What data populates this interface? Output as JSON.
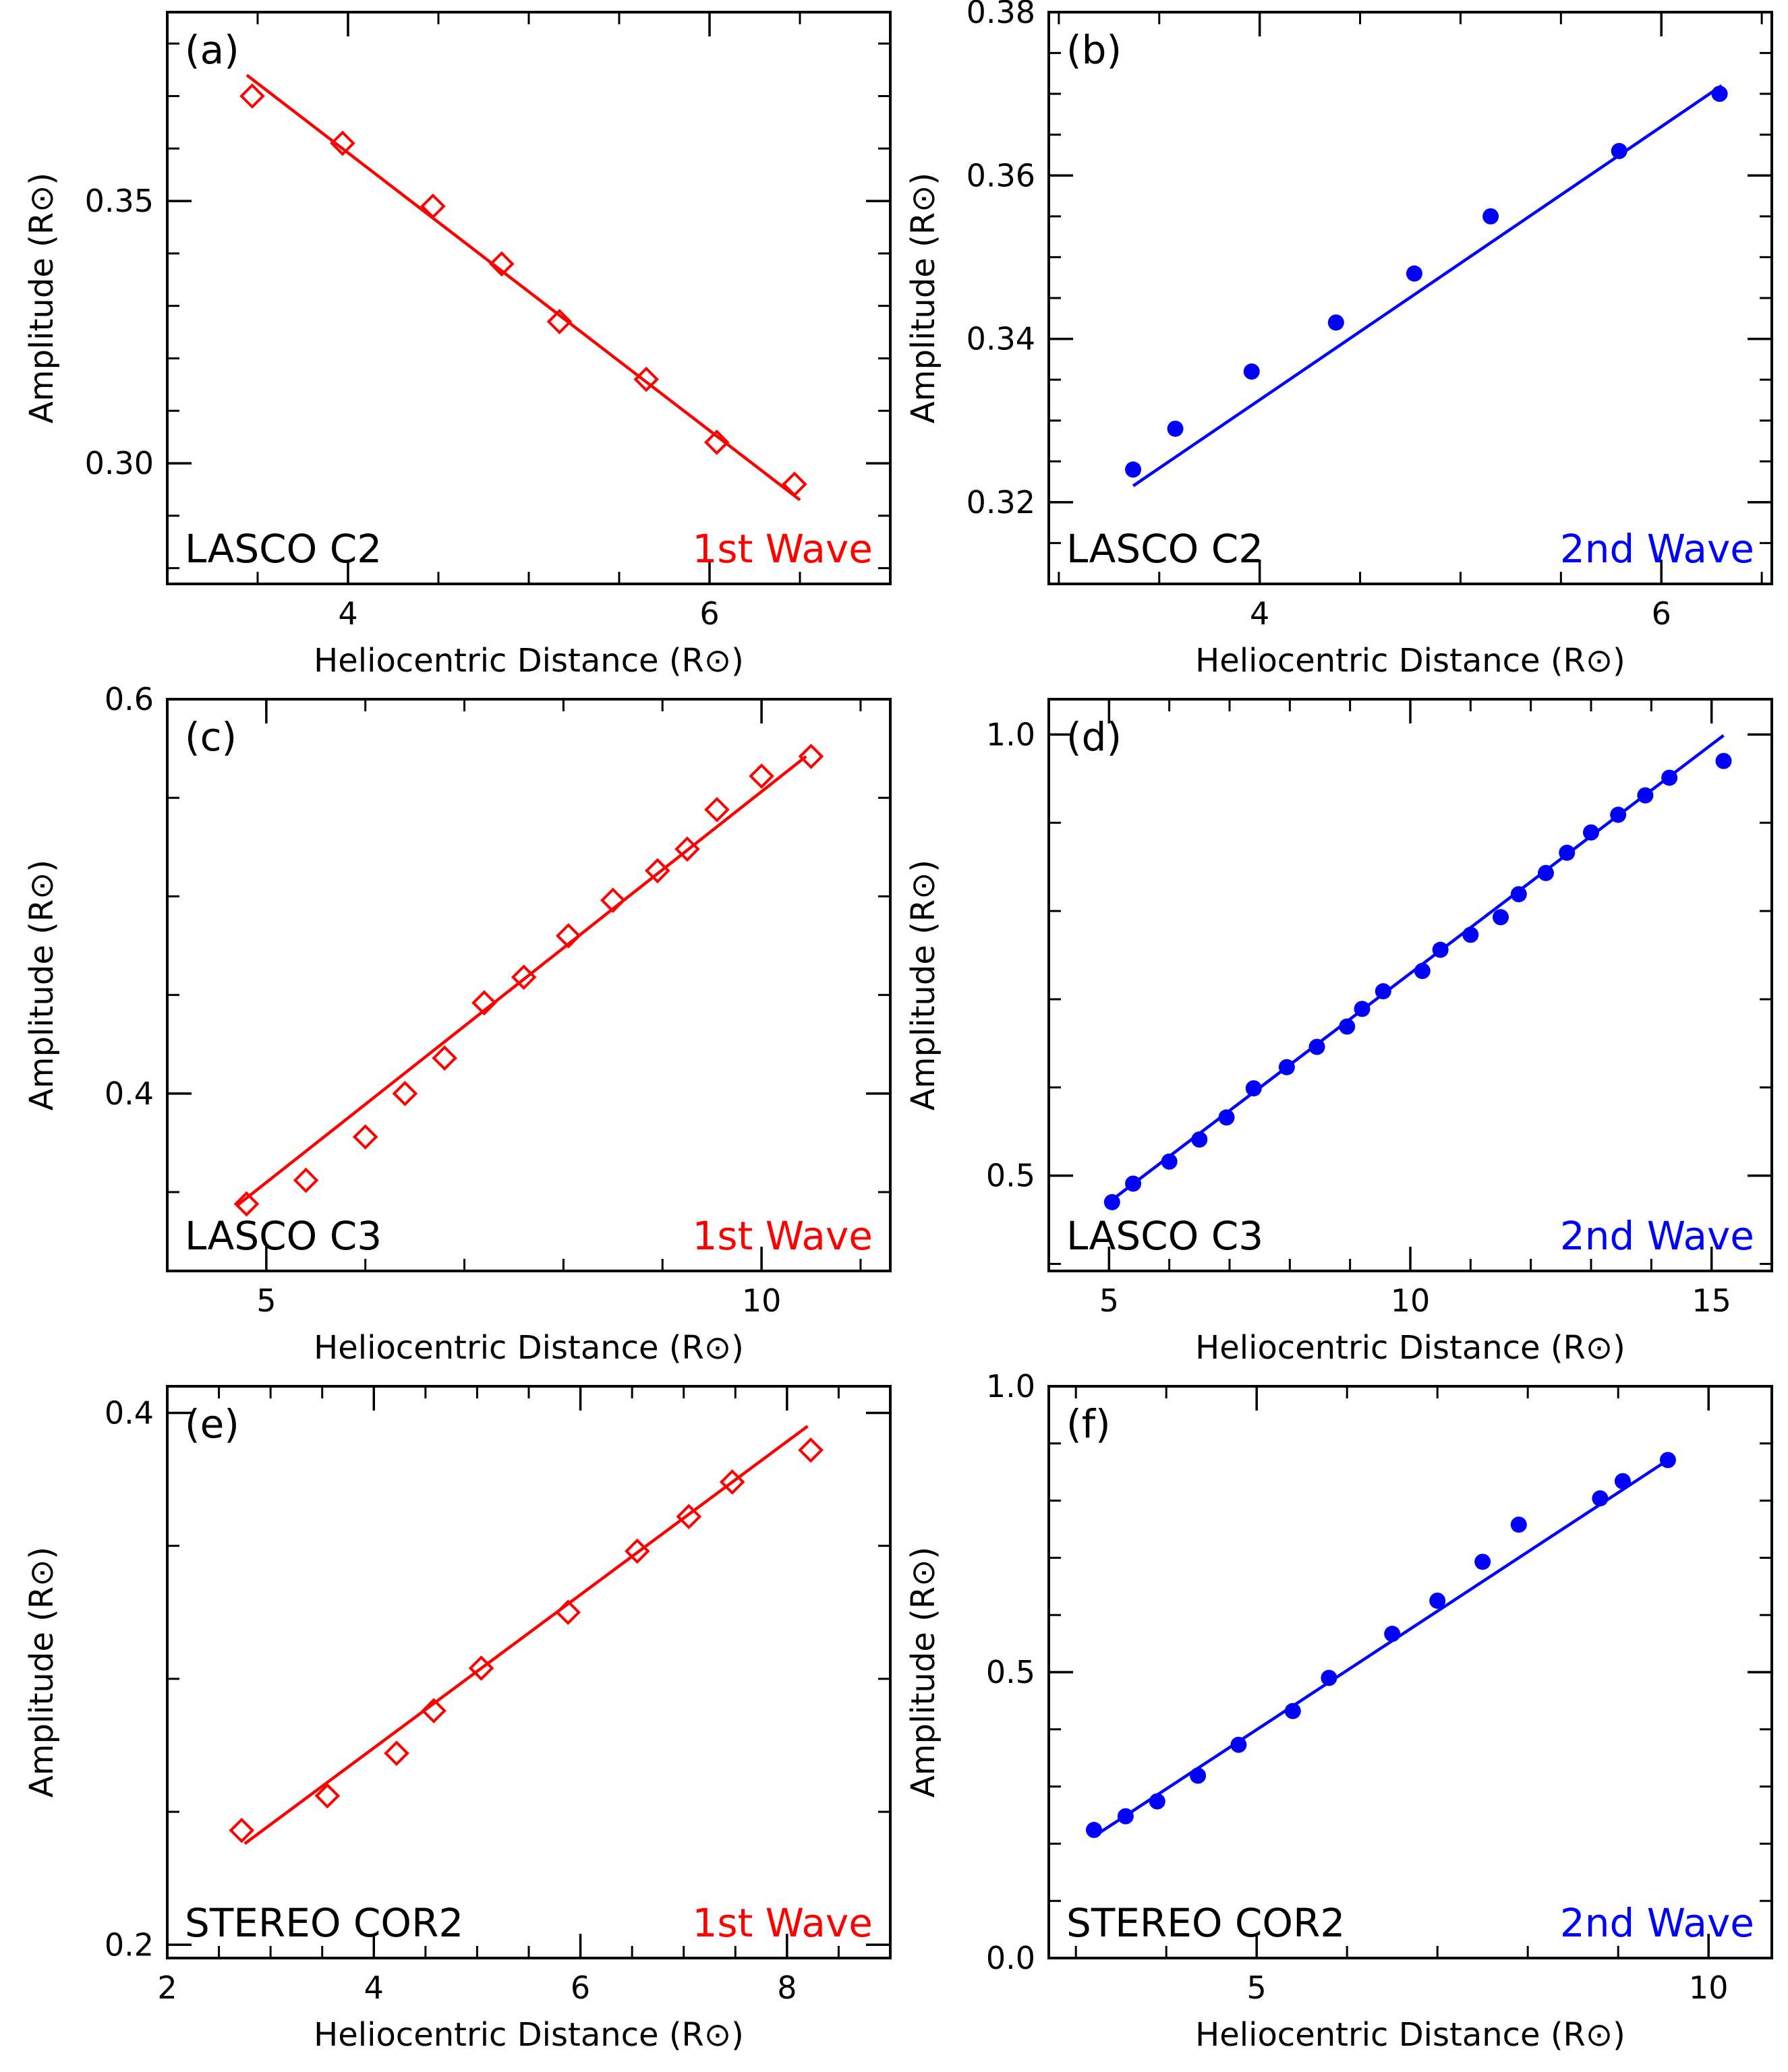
{
  "figure": {
    "colors": {
      "first_wave": "#ff0000",
      "second_wave": "#0000ff",
      "axis": "#000000"
    },
    "panels_info": "six panels in a 3x2 grid"
  },
  "chart_data": [
    {
      "panel": "(a)",
      "type": "scatter",
      "instrument": "LASCO C2",
      "wave": "1st Wave",
      "color": "#ff0000",
      "marker": "diamond-open",
      "xlabel": "Heliocentric Distance (R⊙)",
      "ylabel": "Amplitude (R⊙)",
      "xlim": [
        3.0,
        7.0
      ],
      "ylim": [
        0.277,
        0.386
      ],
      "xticks": [
        4,
        6
      ],
      "xtick_labels": [
        "4",
        "6"
      ],
      "xminor": 0.5,
      "yticks": [
        0.3,
        0.35
      ],
      "ytick_labels": [
        "0.30",
        "0.35"
      ],
      "yminor": 0.01,
      "points": [
        [
          3.47,
          0.37
        ],
        [
          3.97,
          0.361
        ],
        [
          4.47,
          0.349
        ],
        [
          4.85,
          0.338
        ],
        [
          5.17,
          0.327
        ],
        [
          5.65,
          0.316
        ],
        [
          6.04,
          0.304
        ],
        [
          6.47,
          0.296
        ]
      ],
      "fit": [
        [
          3.44,
          0.374
        ],
        [
          6.5,
          0.293
        ]
      ]
    },
    {
      "panel": "(b)",
      "type": "scatter",
      "instrument": "LASCO C2",
      "wave": "2nd Wave",
      "color": "#0000ff",
      "marker": "circle-filled",
      "xlabel": "Heliocentric Distance (R⊙)",
      "ylabel": "Amplitude (R⊙)",
      "xlim": [
        2.95,
        6.55
      ],
      "ylim": [
        0.31,
        0.38
      ],
      "xticks": [
        4,
        6
      ],
      "xtick_labels": [
        "4",
        "6"
      ],
      "xminor": 0.5,
      "yticks": [
        0.32,
        0.34,
        0.36,
        0.38
      ],
      "ytick_labels": [
        "0.32",
        "0.34",
        "0.36",
        "0.38"
      ],
      "yminor": 0.005,
      "points": [
        [
          3.37,
          0.324
        ],
        [
          3.58,
          0.329
        ],
        [
          3.96,
          0.336
        ],
        [
          4.38,
          0.342
        ],
        [
          4.77,
          0.348
        ],
        [
          5.15,
          0.355
        ],
        [
          5.79,
          0.363
        ],
        [
          6.29,
          0.37
        ]
      ],
      "fit": [
        [
          3.37,
          0.322
        ],
        [
          6.3,
          0.371
        ]
      ]
    },
    {
      "panel": "(c)",
      "type": "scatter",
      "instrument": "LASCO C3",
      "wave": "1st Wave",
      "color": "#ff0000",
      "marker": "diamond-open",
      "xlabel": "Heliocentric Distance (R⊙)",
      "ylabel": "Amplitude (R⊙)",
      "xlim": [
        4.0,
        11.3
      ],
      "ylim": [
        0.31,
        0.6
      ],
      "xticks": [
        5,
        10
      ],
      "xtick_labels": [
        "5",
        "10"
      ],
      "xminor": 1,
      "yticks": [
        0.4,
        0.6
      ],
      "ytick_labels": [
        "0.4",
        "0.6"
      ],
      "yminor": 0.05,
      "points": [
        [
          4.8,
          0.344
        ],
        [
          5.4,
          0.356
        ],
        [
          6.0,
          0.378
        ],
        [
          6.4,
          0.4
        ],
        [
          6.8,
          0.418
        ],
        [
          7.2,
          0.446
        ],
        [
          7.6,
          0.459
        ],
        [
          8.05,
          0.48
        ],
        [
          8.5,
          0.498
        ],
        [
          8.95,
          0.513
        ],
        [
          9.25,
          0.524
        ],
        [
          9.55,
          0.544
        ],
        [
          10.0,
          0.561
        ],
        [
          10.5,
          0.571
        ]
      ],
      "fit": [
        [
          4.7,
          0.343
        ],
        [
          10.45,
          0.571
        ]
      ]
    },
    {
      "panel": "(d)",
      "type": "scatter",
      "instrument": "LASCO C3",
      "wave": "2nd Wave",
      "color": "#0000ff",
      "marker": "circle-filled",
      "xlabel": "Heliocentric Distance (R⊙)",
      "ylabel": "Amplitude (R⊙)",
      "xlim": [
        4.0,
        16.0
      ],
      "ylim": [
        0.392,
        1.04
      ],
      "xticks": [
        5,
        10,
        15
      ],
      "xtick_labels": [
        "5",
        "10",
        "15"
      ],
      "xminor": 1,
      "yticks": [
        0.5,
        1.0
      ],
      "ytick_labels": [
        "0.5",
        "1.0"
      ],
      "yminor": 0.1,
      "points": [
        [
          5.05,
          0.47
        ],
        [
          5.4,
          0.491
        ],
        [
          6.0,
          0.516
        ],
        [
          6.5,
          0.541
        ],
        [
          6.95,
          0.566
        ],
        [
          7.4,
          0.599
        ],
        [
          7.95,
          0.623
        ],
        [
          8.45,
          0.646
        ],
        [
          8.95,
          0.669
        ],
        [
          9.2,
          0.689
        ],
        [
          9.55,
          0.709
        ],
        [
          10.2,
          0.732
        ],
        [
          10.5,
          0.756
        ],
        [
          11.0,
          0.773
        ],
        [
          11.5,
          0.793
        ],
        [
          11.8,
          0.819
        ],
        [
          12.25,
          0.843
        ],
        [
          12.6,
          0.866
        ],
        [
          13.0,
          0.889
        ],
        [
          13.45,
          0.909
        ],
        [
          13.9,
          0.931
        ],
        [
          14.3,
          0.951
        ],
        [
          15.2,
          0.97
        ]
      ],
      "fit": [
        [
          5.0,
          0.47
        ],
        [
          15.2,
          0.999
        ]
      ]
    },
    {
      "panel": "(e)",
      "type": "scatter",
      "instrument": "STEREO COR2",
      "wave": "1st Wave",
      "color": "#ff0000",
      "marker": "diamond-open",
      "xlabel": "Heliocentric Distance (R⊙)",
      "ylabel": "Amplitude (R⊙)",
      "xlim": [
        2.0,
        9.0
      ],
      "ylim": [
        0.195,
        0.41
      ],
      "xticks": [
        2,
        4,
        6,
        8
      ],
      "xtick_labels": [
        "2",
        "4",
        "6",
        "8"
      ],
      "xminor": 0.5,
      "yticks": [
        0.2,
        0.4
      ],
      "ytick_labels": [
        "0.2",
        "0.4"
      ],
      "yminor": 0.05,
      "points": [
        [
          2.72,
          0.243
        ],
        [
          3.55,
          0.256
        ],
        [
          4.22,
          0.272
        ],
        [
          4.58,
          0.288
        ],
        [
          5.04,
          0.304
        ],
        [
          5.88,
          0.325
        ],
        [
          6.55,
          0.348
        ],
        [
          7.05,
          0.361
        ],
        [
          7.47,
          0.374
        ],
        [
          8.23,
          0.386
        ]
      ],
      "fit": [
        [
          2.75,
          0.238
        ],
        [
          8.2,
          0.395
        ]
      ]
    },
    {
      "panel": "(f)",
      "type": "scatter",
      "instrument": "STEREO COR2",
      "wave": "2nd Wave",
      "color": "#0000ff",
      "marker": "circle-filled",
      "xlabel": "Heliocentric Distance (R⊙)",
      "ylabel": "Amplitude (R⊙)",
      "xlim": [
        2.7,
        10.7
      ],
      "ylim": [
        0.0,
        1.0
      ],
      "xticks": [
        5,
        10
      ],
      "xtick_labels": [
        "5",
        "10"
      ],
      "xminor": 1,
      "yticks": [
        0.0,
        0.5,
        1.0
      ],
      "ytick_labels": [
        "0.0",
        "0.5",
        "1.0"
      ],
      "yminor": 0.1,
      "points": [
        [
          3.2,
          0.224
        ],
        [
          3.55,
          0.248
        ],
        [
          3.9,
          0.274
        ],
        [
          4.35,
          0.319
        ],
        [
          4.8,
          0.373
        ],
        [
          5.4,
          0.432
        ],
        [
          5.8,
          0.49
        ],
        [
          6.5,
          0.567
        ],
        [
          7.0,
          0.625
        ],
        [
          7.5,
          0.693
        ],
        [
          7.9,
          0.758
        ],
        [
          8.8,
          0.804
        ],
        [
          9.05,
          0.834
        ],
        [
          9.55,
          0.871
        ]
      ],
      "fit": [
        [
          3.25,
          0.218
        ],
        [
          9.55,
          0.871
        ]
      ]
    }
  ]
}
